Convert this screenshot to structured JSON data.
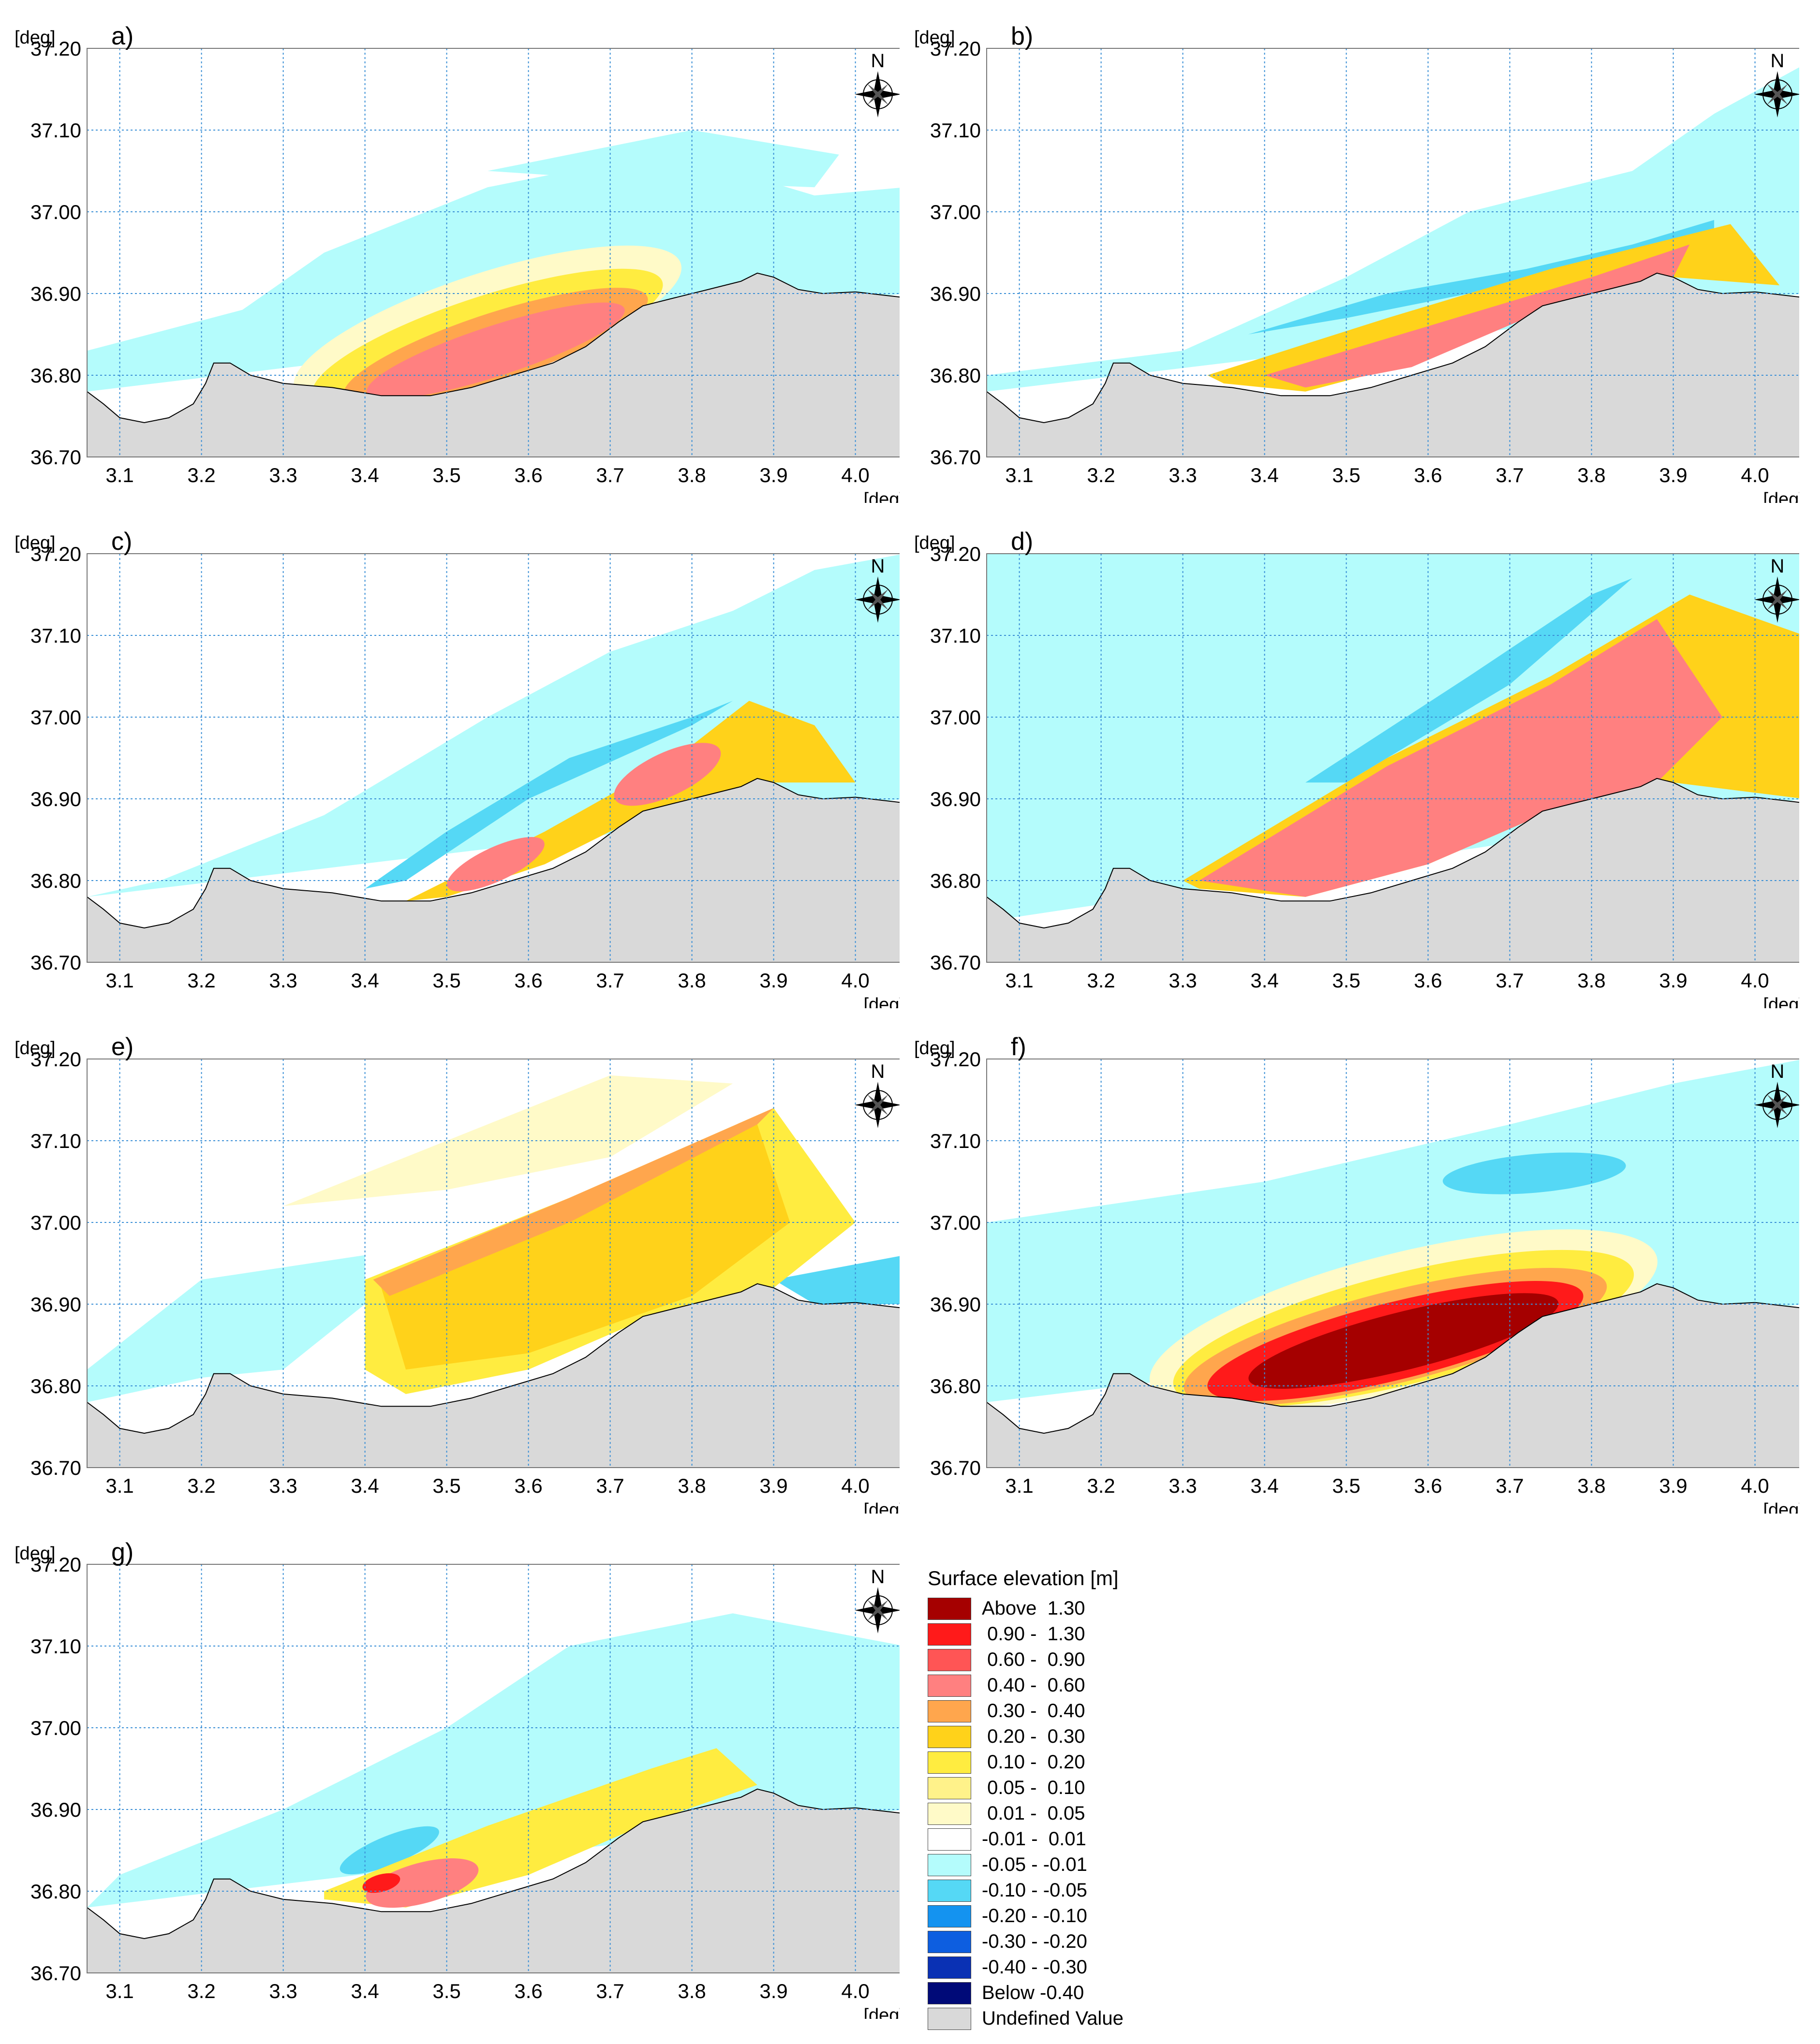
{
  "units": {
    "deg": "[deg]"
  },
  "axes": {
    "y_ticks": [
      "37.20",
      "37.10",
      "37.00",
      "36.90",
      "36.80",
      "36.70"
    ],
    "x_ticks": [
      "3.1",
      "3.2",
      "3.3",
      "3.4",
      "3.5",
      "3.6",
      "3.7",
      "3.8",
      "3.9",
      "4.0"
    ]
  },
  "compass": {
    "north_label": "N",
    "icon": "compass-rose-icon"
  },
  "colors": {
    "above_1_30": "#a50000",
    "c_0_90_1_30": "#ff1a1a",
    "c_0_60_0_90": "#ff5555",
    "c_0_40_0_60": "#ff8080",
    "c_0_30_0_40": "#ffa64d",
    "c_0_20_0_30": "#ffd21a",
    "c_0_10_0_20": "#ffec40",
    "c_0_05_0_10": "#fff28a",
    "c_0_01_0_05": "#fffac8",
    "c_m0_01_0_01": "#ffffff",
    "c_m0_05_m0_01": "#b4fcfc",
    "c_m0_10_m0_05": "#55d8f5",
    "c_m0_20_m0_10": "#1493f0",
    "c_m0_30_m0_20": "#0d5ee0",
    "c_m0_40_m0_30": "#0a31b4",
    "below_m0_40": "#000a78",
    "undefined": "#d9d9d9",
    "grid": "#3a8fd6"
  },
  "panels": [
    {
      "label": "a)"
    },
    {
      "label": "b)"
    },
    {
      "label": "c)"
    },
    {
      "label": "d)"
    },
    {
      "label": "e)"
    },
    {
      "label": "f)"
    },
    {
      "label": "g)"
    }
  ],
  "legend": {
    "title": "Surface elevation [m]",
    "items": [
      {
        "label": "Above  1.30",
        "color": "#a50000"
      },
      {
        "label": " 0.90 -  1.30",
        "color": "#ff1a1a"
      },
      {
        "label": " 0.60 -  0.90",
        "color": "#ff5555"
      },
      {
        "label": " 0.40 -  0.60",
        "color": "#ff8080"
      },
      {
        "label": " 0.30 -  0.40",
        "color": "#ffa64d"
      },
      {
        "label": " 0.20 -  0.30",
        "color": "#ffd21a"
      },
      {
        "label": " 0.10 -  0.20",
        "color": "#ffec40"
      },
      {
        "label": " 0.05 -  0.10",
        "color": "#fff28a"
      },
      {
        "label": " 0.01 -  0.05",
        "color": "#fffac8"
      },
      {
        "label": "-0.01 -  0.01",
        "color": "#ffffff"
      },
      {
        "label": "-0.05 - -0.01",
        "color": "#b4fcfc"
      },
      {
        "label": "-0.10 - -0.05",
        "color": "#55d8f5"
      },
      {
        "label": "-0.20 - -0.10",
        "color": "#1493f0"
      },
      {
        "label": "-0.30 - -0.20",
        "color": "#0d5ee0"
      },
      {
        "label": "-0.40 - -0.30",
        "color": "#0a31b4"
      },
      {
        "label": "Below -0.40",
        "color": "#000a78"
      },
      {
        "label": "Undefined Value",
        "color": "#d9d9d9"
      }
    ]
  }
}
